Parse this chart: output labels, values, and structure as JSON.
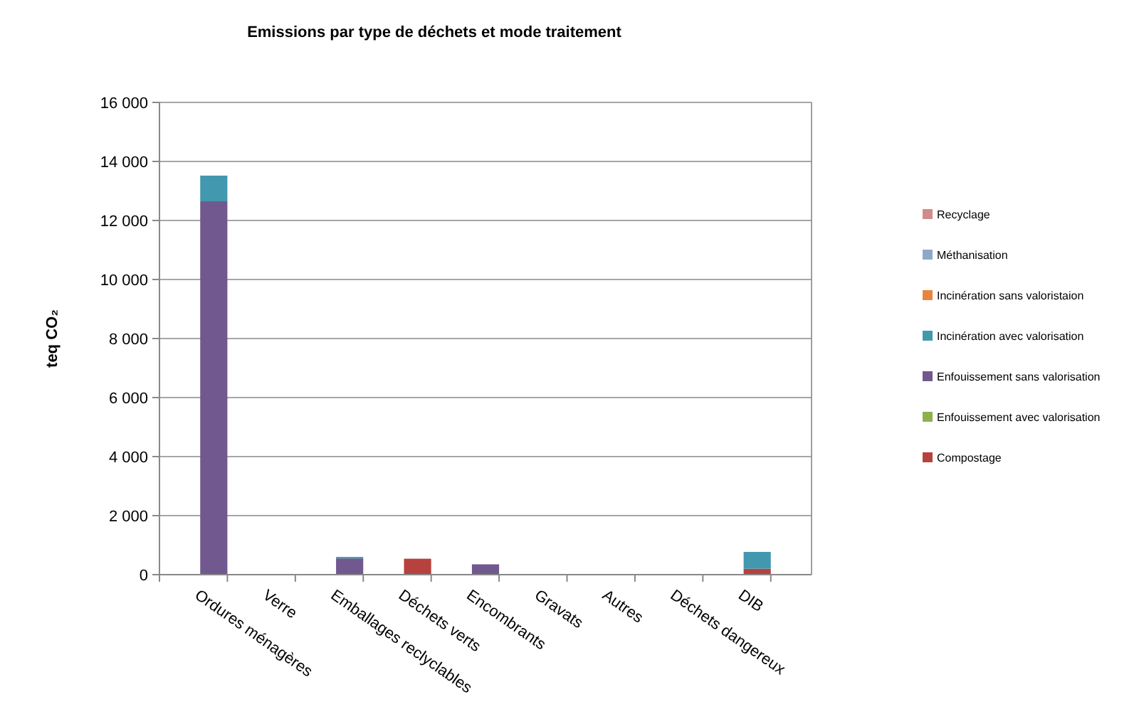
{
  "chart_data": {
    "type": "bar",
    "title": "Emissions par type de déchets et mode traitement",
    "ylabel": "teq CO₂",
    "categories": [
      "Ordures ménagères",
      "Verre",
      "Emballages reclyclables",
      "Déchets verts",
      "Encombrants",
      "Gravats",
      "Autres",
      "Déchets dangereux",
      "DIB"
    ],
    "stacked": true,
    "series": [
      {
        "name": "Compostage",
        "color": "#b7413e",
        "values": [
          0,
          0,
          0,
          540,
          0,
          0,
          0,
          0,
          200
        ]
      },
      {
        "name": "Enfouissement avec valorisation",
        "color": "#8fb04f",
        "values": [
          0,
          0,
          0,
          0,
          0,
          0,
          0,
          0,
          0
        ]
      },
      {
        "name": "Enfouissement sans valorisation",
        "color": "#71588f",
        "values": [
          12650,
          0,
          550,
          0,
          350,
          0,
          0,
          0,
          0
        ]
      },
      {
        "name": "Incinération avec valorisation",
        "color": "#4198af",
        "values": [
          870,
          0,
          50,
          0,
          0,
          0,
          0,
          0,
          570
        ]
      },
      {
        "name": "Incinération sans valoristaion",
        "color": "#e8853d",
        "values": [
          0,
          0,
          0,
          0,
          0,
          0,
          0,
          0,
          0
        ]
      },
      {
        "name": "Méthanisation",
        "color": "#8ea8cc",
        "values": [
          0,
          0,
          0,
          0,
          0,
          0,
          0,
          0,
          0
        ]
      },
      {
        "name": "Recyclage",
        "color": "#d08c8a",
        "values": [
          0,
          0,
          0,
          0,
          0,
          0,
          0,
          0,
          0
        ]
      }
    ],
    "ylim": [
      0,
      16000
    ],
    "yticks": [
      0,
      {
        "value": 2000,
        "label": "2 000"
      },
      {
        "value": 4000,
        "label": "4 000"
      },
      {
        "value": 6000,
        "label": "6 000"
      },
      {
        "value": 8000,
        "label": "8 000"
      },
      {
        "value": 10000,
        "label": "10 000"
      },
      {
        "value": 12000,
        "label": "12 000"
      },
      {
        "value": 14000,
        "label": "14 000"
      },
      {
        "value": 16000,
        "label": "16 000"
      }
    ],
    "grid": "y",
    "legend": "right"
  }
}
